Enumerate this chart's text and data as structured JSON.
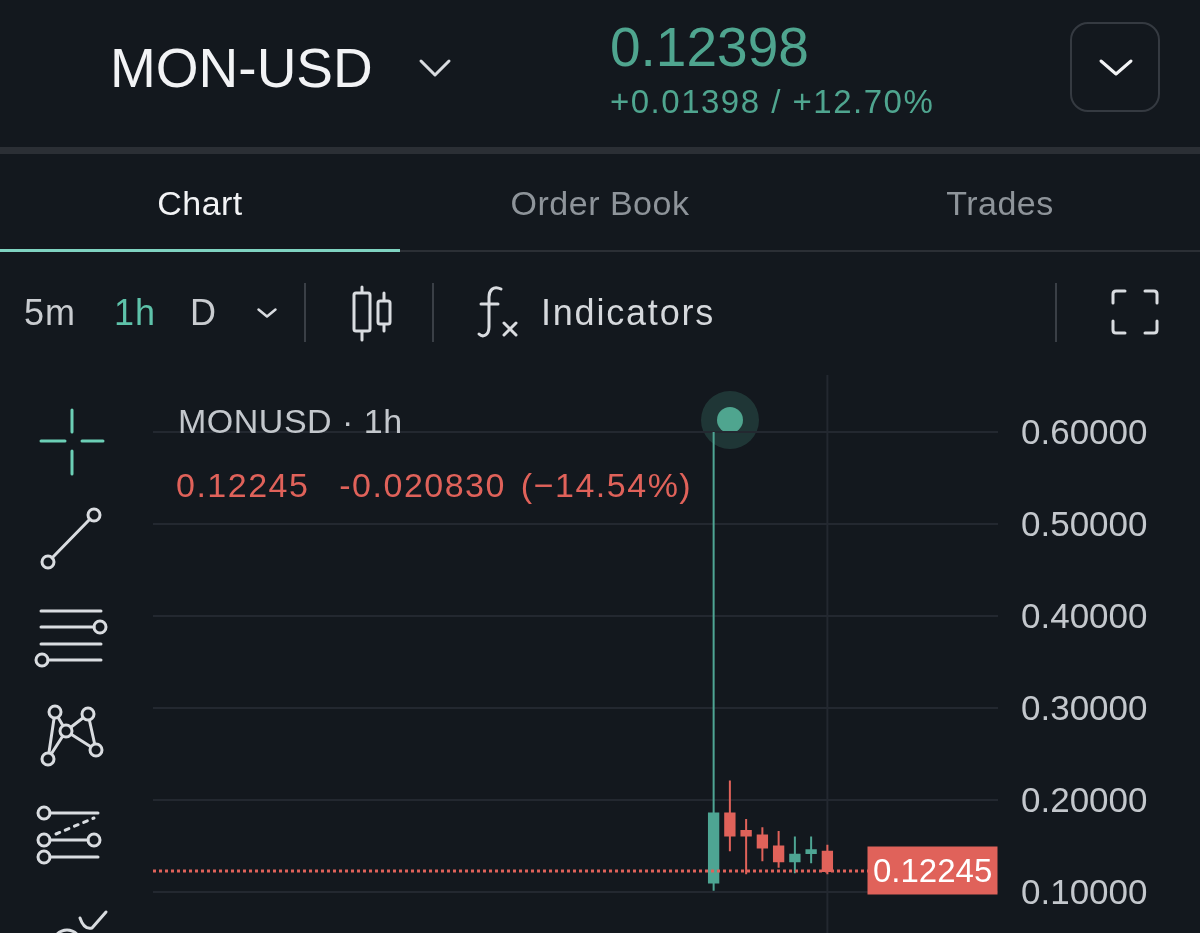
{
  "chart_data": {
    "type": "candlestick",
    "title": "MON-USD",
    "subtitle": "MONUSD · 1h",
    "annotations": [
      "0.12398",
      "+0.01398 / +12.70%",
      "Chart",
      "Order Book",
      "Trades",
      "5m",
      "1h",
      "D",
      "Indicators",
      "0.12245  -0.020830 (−14.54%)"
    ],
    "categories": [
      null,
      null,
      null,
      null,
      null,
      null,
      null,
      null,
      null,
      null,
      null,
      null,
      null,
      null,
      null,
      null,
      null,
      null,
      null,
      null,
      null,
      null,
      null,
      null,
      null,
      null,
      null,
      null,
      null,
      null,
      null,
      null,
      null,
      null,
      null,
      null,
      null,
      null,
      null,
      null,
      null,
      null,
      null,
      null,
      null,
      null,
      null,
      null,
      null,
      null,
      null,
      null
    ],
    "ohlc": [
      null,
      null,
      null,
      null,
      null,
      null,
      null,
      null,
      null,
      null,
      null,
      null,
      null,
      null,
      null,
      null,
      null,
      null,
      null,
      null,
      null,
      null,
      null,
      null,
      null,
      null,
      null,
      null,
      null,
      null,
      null,
      null,
      null,
      null,
      [
        0.11,
        0.6,
        0.101,
        0.185
      ],
      [
        0.185,
        0.221,
        0.144,
        0.161
      ],
      [
        0.166,
        0.179,
        0.119,
        0.161
      ],
      [
        0.161,
        0.17,
        0.133,
        0.148
      ],
      [
        0.149,
        0.166,
        0.126,
        0.133
      ],
      [
        0.133,
        0.16,
        0.12,
        0.14
      ],
      [
        0.142,
        0.16,
        0.131,
        0.145
      ],
      [
        0.14328,
        0.151,
        0.119,
        0.12245
      ],
      null,
      null,
      null,
      null,
      null,
      null,
      null,
      null,
      null,
      null
    ],
    "colors": [
      null,
      null,
      null,
      null,
      null,
      null,
      null,
      null,
      null,
      null,
      null,
      null,
      null,
      null,
      null,
      null,
      null,
      null,
      null,
      null,
      null,
      null,
      null,
      null,
      null,
      null,
      null,
      null,
      null,
      null,
      null,
      null,
      null,
      null,
      "#4ea593",
      "#e0625a",
      "#e0625a",
      "#e0625a",
      "#e0625a",
      "#4ea593",
      "#4ea593",
      "#e0625a",
      null,
      null,
      null,
      null,
      null,
      null,
      null,
      null,
      null,
      null
    ],
    "ylim": [
      0.055,
      0.662
    ],
    "yticks": [
      {
        "value": 0.1,
        "label": "0.10000"
      },
      {
        "value": 0.2,
        "label": "0.20000"
      },
      {
        "value": 0.3,
        "label": "0.30000"
      },
      {
        "value": 0.4,
        "label": "0.40000"
      },
      {
        "value": 0.5,
        "label": "0.50000"
      },
      {
        "value": 0.6,
        "label": "0.60000"
      }
    ],
    "grid": "y",
    "tick_labels": "y",
    "ref_lines": [
      {
        "axis": "y",
        "value": 0.12245,
        "label": "0.12245",
        "color": "#e0625a",
        "line_style": "dotted"
      }
    ]
  }
}
